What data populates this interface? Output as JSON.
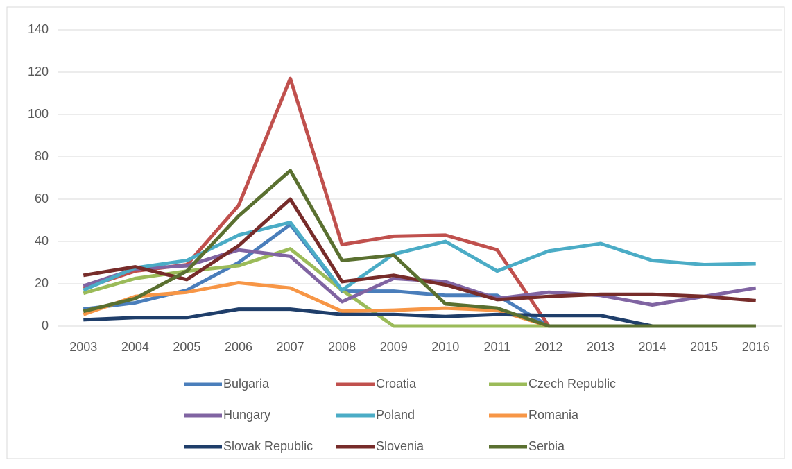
{
  "chart_data": {
    "type": "line",
    "categories": [
      "2003",
      "2004",
      "2005",
      "2006",
      "2007",
      "2008",
      "2009",
      "2010",
      "2011",
      "2012",
      "2013",
      "2014",
      "2015",
      "2016"
    ],
    "series": [
      {
        "name": "Bulgaria",
        "color": "#4a7ebb",
        "values": [
          8,
          11,
          17,
          30,
          48,
          16.5,
          16.5,
          14.5,
          14.5,
          0,
          0,
          0,
          0,
          0
        ]
      },
      {
        "name": "Croatia",
        "color": "#c0504d",
        "values": [
          18,
          26,
          29,
          57,
          117,
          38.5,
          42.5,
          43,
          36,
          0,
          0,
          0,
          0,
          0
        ]
      },
      {
        "name": "Czech Republic",
        "color": "#9bbb59",
        "values": [
          15.5,
          22.5,
          26,
          28.5,
          36.5,
          17,
          0,
          0,
          0,
          0,
          0,
          0,
          0,
          0
        ]
      },
      {
        "name": "Hungary",
        "color": "#8064a2",
        "values": [
          19,
          27,
          28.5,
          36,
          33,
          11.5,
          22.5,
          21,
          13,
          16,
          14.5,
          10,
          14,
          18
        ]
      },
      {
        "name": "Poland",
        "color": "#4bacc6",
        "values": [
          17,
          27.5,
          31,
          43,
          49,
          17,
          34,
          40,
          26,
          35.5,
          39,
          31,
          29,
          29.5
        ]
      },
      {
        "name": "Romania",
        "color": "#f79646",
        "values": [
          5.5,
          14,
          16,
          20.5,
          18,
          7,
          7.5,
          8.5,
          7.5,
          0,
          0,
          0,
          0,
          0
        ]
      },
      {
        "name": "Slovak Republic",
        "color": "#1f3e6a",
        "values": [
          3,
          4,
          4,
          8,
          8,
          5.5,
          5.5,
          4.5,
          5.5,
          5,
          5,
          0,
          0,
          0
        ]
      },
      {
        "name": "Slovenia",
        "color": "#772c2a",
        "values": [
          24,
          28,
          22,
          38,
          60,
          21,
          24,
          19.5,
          12.5,
          14,
          15,
          15,
          14,
          12
        ]
      },
      {
        "name": "Serbia",
        "color": "#5a7030",
        "values": [
          7,
          13,
          26,
          52,
          73.5,
          31,
          33.5,
          10.5,
          8.5,
          0,
          0,
          0,
          0,
          0
        ]
      }
    ],
    "ylim": [
      0,
      140
    ],
    "yticks": [
      0,
      20,
      40,
      60,
      80,
      100,
      120,
      140
    ],
    "grid": true,
    "legend": "bottom"
  }
}
